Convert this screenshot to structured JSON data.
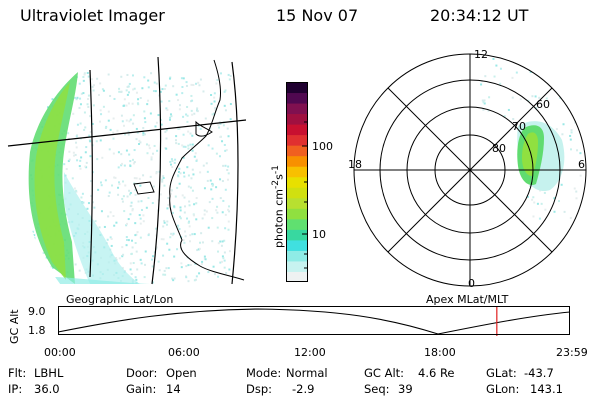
{
  "header": {
    "instrument": "Ultraviolet Imager",
    "date": "15 Nov 07",
    "time": "20:34:12 UT"
  },
  "colorbar": {
    "label_html": "photon cm<sup>-2</sup>s<sup>-1</sup>",
    "ticks": [
      "100",
      "10"
    ],
    "tick_values": [
      100,
      10
    ],
    "colors": [
      "#eef2f2",
      "#c7f3f0",
      "#8fece6",
      "#40e0e0",
      "#38d8a0",
      "#60e070",
      "#90e040",
      "#b8e030",
      "#d0e010",
      "#e8e000",
      "#f8c000",
      "#f89000",
      "#f06020",
      "#e03030",
      "#c81030",
      "#a01040",
      "#801050",
      "#500850",
      "#200030"
    ]
  },
  "polar_plot": {
    "mlt_labels": [
      "12",
      "18",
      "6",
      "0"
    ],
    "lat_labels": [
      "80",
      "70",
      "60"
    ]
  },
  "left_map_label": "Geographic Lat/Lon",
  "right_map_label": "Apex MLat/MLT",
  "altitude_panel": {
    "ylabel": "GC Alt",
    "yticks": [
      "9.0",
      "1.8"
    ],
    "xticks": [
      "00:00",
      "06:00",
      "12:00",
      "18:00",
      "23:59"
    ],
    "current_time_marker_hours": 20.57,
    "marker_color": "#e02020"
  },
  "footer": {
    "row1": [
      {
        "label": "Flt:",
        "value": "LBHL"
      },
      {
        "label": "Door:",
        "value": "Open"
      },
      {
        "label": "Mode:",
        "value": "Normal"
      },
      {
        "label": "GC Alt:",
        "value": "4.6 Re"
      },
      {
        "label": "GLat:",
        "value": "-43.7"
      }
    ],
    "row2": [
      {
        "label": "IP:",
        "value": "36.0"
      },
      {
        "label": "Gain:",
        "value": "14"
      },
      {
        "label": "Dsp:",
        "value": "-2.9"
      },
      {
        "label": "Seq:",
        "value": "39"
      },
      {
        "label": "GLon:",
        "value": "143.1"
      }
    ]
  }
}
